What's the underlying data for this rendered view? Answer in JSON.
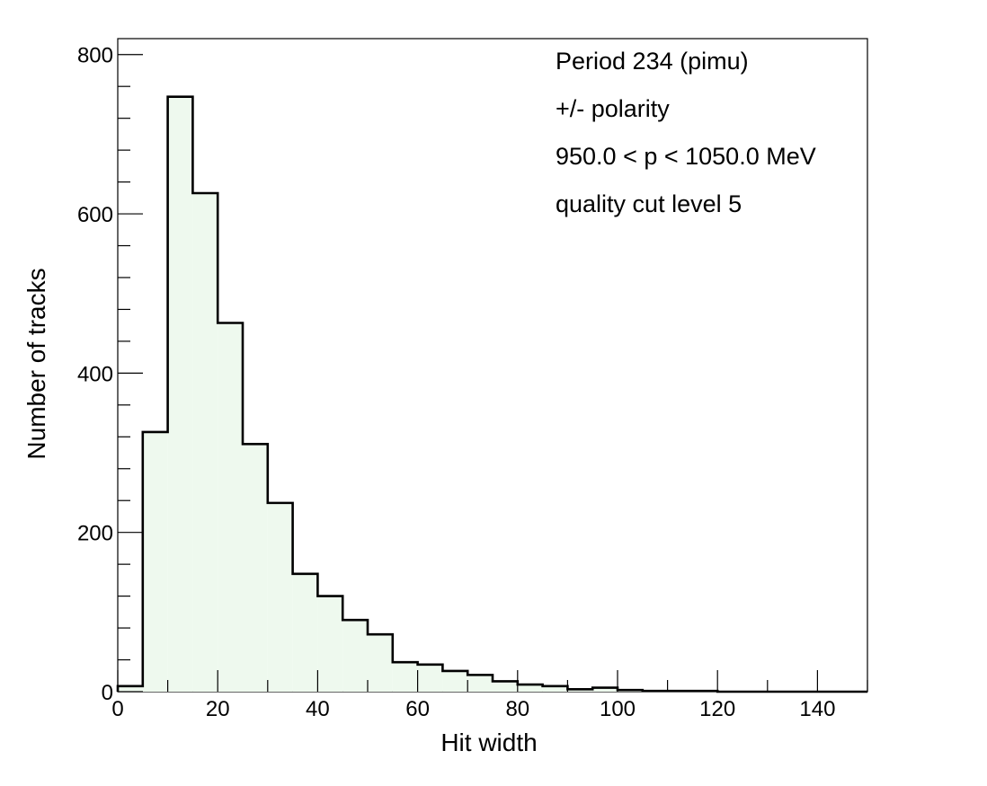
{
  "chart_data": {
    "type": "histogram",
    "xlabel": "Hit width",
    "ylabel": "Number of tracks",
    "xlim": [
      0,
      150
    ],
    "ylim": [
      0,
      820
    ],
    "bin_width": 5,
    "x_ticks": [
      0,
      20,
      40,
      60,
      80,
      100,
      120,
      140
    ],
    "y_ticks": [
      0,
      200,
      400,
      600,
      800
    ],
    "bin_edges": [
      0,
      5,
      10,
      15,
      20,
      25,
      30,
      35,
      40,
      45,
      50,
      55,
      60,
      65,
      70,
      75,
      80,
      85,
      90,
      95,
      100,
      105,
      110,
      115,
      120,
      125,
      130,
      135,
      140,
      145,
      150
    ],
    "values": [
      7,
      326,
      747,
      626,
      463,
      311,
      237,
      148,
      120,
      90,
      72,
      37,
      34,
      26,
      21,
      13,
      9,
      7,
      3,
      5,
      2,
      1,
      1,
      1,
      0,
      0,
      0,
      0,
      0,
      0
    ],
    "fill_color": "#eef9ee",
    "line_color": "#000000",
    "annotations": [
      "Period 234 (pimu)",
      "+/- polarity",
      "950.0 < p < 1050.0 MeV",
      "quality cut level 5"
    ],
    "grid": false,
    "legend": "none"
  }
}
